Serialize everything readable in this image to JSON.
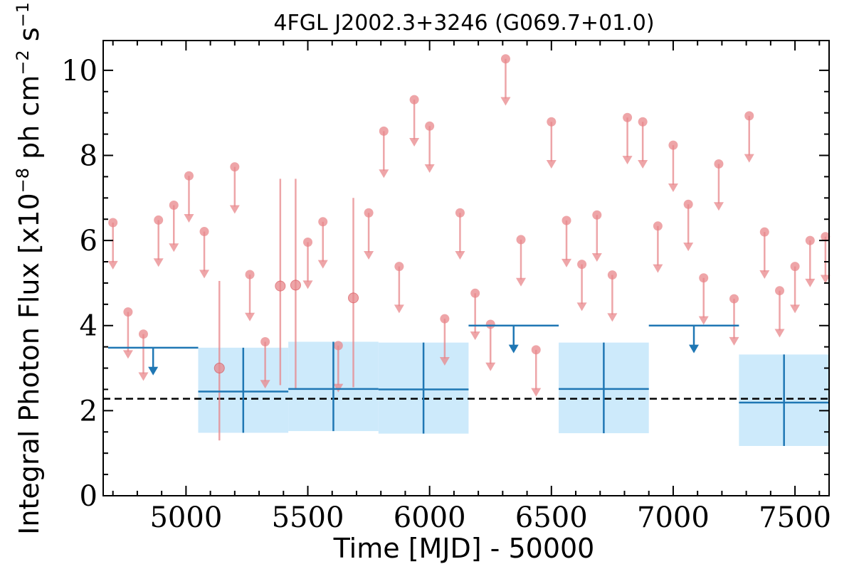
{
  "chart_data": {
    "type": "scatter",
    "title": "4FGL J2002.3+3246 (G069.7+01.0)",
    "xlabel": "Time [MJD] - 50000",
    "ylabel": "Integral Photon Flux [x10",
    "ylabel_exp": "−8",
    "ylabel_mid": " ph cm",
    "ylabel_exp2": "−2",
    "ylabel_mid2": " s",
    "ylabel_exp3": "−1",
    "ylabel_end": "]",
    "xlim": [
      4660,
      7640
    ],
    "ylim": [
      0,
      10.7
    ],
    "x_ticks": [
      5000,
      5500,
      6000,
      6500,
      7000,
      7500
    ],
    "y_ticks": [
      0,
      2,
      4,
      6,
      8,
      10
    ],
    "baseline": 2.28,
    "colors": {
      "short_bins": "#e8878b",
      "long_bins": "#1f77b4",
      "long_bins_band": "#cdeafb",
      "baseline": "#000000"
    },
    "short_bins_upper_limits": [
      {
        "x": 4700,
        "y": 6.42
      },
      {
        "x": 4762,
        "y": 4.32
      },
      {
        "x": 4825,
        "y": 3.8
      },
      {
        "x": 4887,
        "y": 6.48
      },
      {
        "x": 4950,
        "y": 6.83
      },
      {
        "x": 5012,
        "y": 7.52
      },
      {
        "x": 5075,
        "y": 6.21
      },
      {
        "x": 5200,
        "y": 7.73
      },
      {
        "x": 5262,
        "y": 5.2
      },
      {
        "x": 5325,
        "y": 3.62
      },
      {
        "x": 5500,
        "y": 5.96
      },
      {
        "x": 5562,
        "y": 6.44
      },
      {
        "x": 5625,
        "y": 3.53
      },
      {
        "x": 5750,
        "y": 6.65
      },
      {
        "x": 5812,
        "y": 8.57
      },
      {
        "x": 5875,
        "y": 5.39
      },
      {
        "x": 5937,
        "y": 9.31
      },
      {
        "x": 6000,
        "y": 8.69
      },
      {
        "x": 6062,
        "y": 4.16
      },
      {
        "x": 6125,
        "y": 6.65
      },
      {
        "x": 6187,
        "y": 4.76
      },
      {
        "x": 6250,
        "y": 4.03
      },
      {
        "x": 6312,
        "y": 10.27
      },
      {
        "x": 6375,
        "y": 6.02
      },
      {
        "x": 6437,
        "y": 3.43
      },
      {
        "x": 6500,
        "y": 8.79
      },
      {
        "x": 6562,
        "y": 6.47
      },
      {
        "x": 6625,
        "y": 5.44
      },
      {
        "x": 6687,
        "y": 6.6
      },
      {
        "x": 6750,
        "y": 5.19
      },
      {
        "x": 6812,
        "y": 8.89
      },
      {
        "x": 6875,
        "y": 8.79
      },
      {
        "x": 6937,
        "y": 6.34
      },
      {
        "x": 7000,
        "y": 8.24
      },
      {
        "x": 7062,
        "y": 6.85
      },
      {
        "x": 7125,
        "y": 5.12
      },
      {
        "x": 7187,
        "y": 7.8
      },
      {
        "x": 7250,
        "y": 4.63
      },
      {
        "x": 7312,
        "y": 8.93
      },
      {
        "x": 7375,
        "y": 6.2
      },
      {
        "x": 7437,
        "y": 4.82
      },
      {
        "x": 7500,
        "y": 5.39
      },
      {
        "x": 7562,
        "y": 6.0
      },
      {
        "x": 7625,
        "y": 6.09
      }
    ],
    "short_bins_detections": [
      {
        "x": 5137,
        "y": 3.0,
        "y_low": 1.3,
        "y_high": 5.05
      },
      {
        "x": 5387,
        "y": 4.93,
        "y_low": 2.6,
        "y_high": 7.45
      },
      {
        "x": 5450,
        "y": 4.95,
        "y_low": 2.5,
        "y_high": 7.45
      },
      {
        "x": 5687,
        "y": 4.65,
        "y_low": 2.55,
        "y_high": 7.0
      }
    ],
    "long_bins_detections": [
      {
        "x_start": 5050,
        "x_end": 5420,
        "x": 5235,
        "y": 2.45,
        "y_low": 1.48,
        "y_high": 3.48
      },
      {
        "x_start": 5420,
        "x_end": 5790,
        "x": 5605,
        "y": 2.51,
        "y_low": 1.52,
        "y_high": 3.62
      },
      {
        "x_start": 5790,
        "x_end": 6160,
        "x": 5975,
        "y": 2.5,
        "y_low": 1.46,
        "y_high": 3.6
      },
      {
        "x_start": 6530,
        "x_end": 6900,
        "x": 6715,
        "y": 2.51,
        "y_low": 1.47,
        "y_high": 3.6
      },
      {
        "x_start": 7270,
        "x_end": 7640,
        "x": 7455,
        "y": 2.19,
        "y_low": 1.17,
        "y_high": 3.32
      }
    ],
    "long_bins_upper_limits": [
      {
        "x_start": 4680,
        "x_end": 5050,
        "x": 4865,
        "y": 3.48
      },
      {
        "x_start": 6160,
        "x_end": 6530,
        "x": 6345,
        "y": 4.0
      },
      {
        "x_start": 6900,
        "x_end": 7270,
        "x": 7085,
        "y": 4.0
      }
    ]
  }
}
